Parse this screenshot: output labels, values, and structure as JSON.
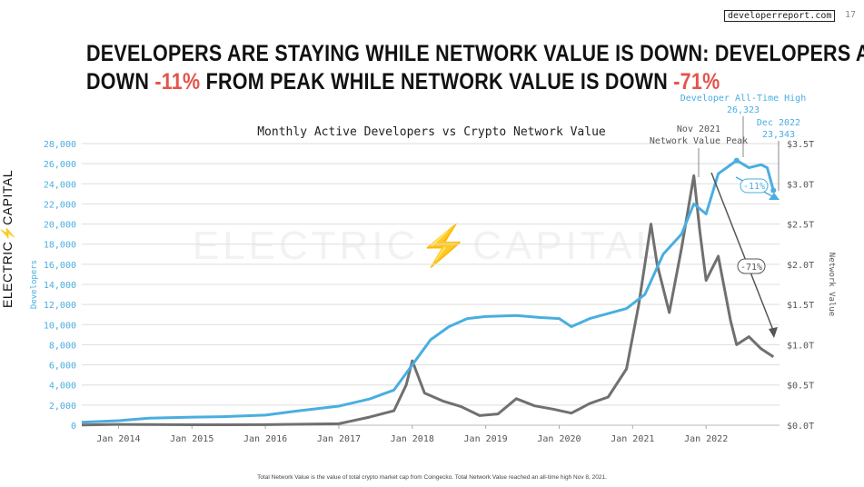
{
  "header": {
    "site": "developerreport.com",
    "page_number": "17",
    "headline_1": "DEVELOPERS ARE STAYING WHILE NETWORK VALUE IS DOWN: DEVELOPERS ARE",
    "headline_2a": "DOWN ",
    "headline_2b": "-11%",
    "headline_2c": " FROM PEAK WHILE NETWORK VALUE IS DOWN ",
    "headline_2d": "-71%"
  },
  "brand": "ELECTRIC⚡CAPITAL",
  "footnote": "Total Network Value is the value of total crypto market cap from Coingecko. Total Network Value reached an all-time high Nov 8, 2021.",
  "colors": {
    "developers": "#4aaee0",
    "network_value": "#707070",
    "accent_red": "#e5534b"
  },
  "chart_data": {
    "type": "line",
    "title": "Monthly Active Developers vs Crypto Network Value",
    "watermark": "ELECTRIC⚡CAPITAL",
    "ylabel": "Developers",
    "y2label": "Network Value",
    "ylim": [
      0,
      28000
    ],
    "y2lim": [
      0,
      3.5
    ],
    "xlim": [
      "2013-07",
      "2022-12"
    ],
    "x_ticks": [
      "Jan 2014",
      "Jan 2015",
      "Jan 2016",
      "Jan 2017",
      "Jan 2018",
      "Jan 2019",
      "Jan 2020",
      "Jan 2021",
      "Jan 2022"
    ],
    "y_ticks": [
      "0",
      "2,000",
      "4,000",
      "6,000",
      "8,000",
      "10,000",
      "12,000",
      "14,000",
      "16,000",
      "18,000",
      "20,000",
      "22,000",
      "24,000",
      "26,000",
      "28,000"
    ],
    "y2_ticks": [
      "$0.0T",
      "$0.5T",
      "$1.0T",
      "$1.5T",
      "$2.0T",
      "$2.5T",
      "$3.0T",
      "$3.5T"
    ],
    "grid": true,
    "series": [
      {
        "name": "Developers",
        "axis": "left",
        "x": [
          "2013-07",
          "2014-01",
          "2014-06",
          "2015-01",
          "2015-06",
          "2016-01",
          "2016-06",
          "2017-01",
          "2017-06",
          "2017-10",
          "2018-01",
          "2018-04",
          "2018-07",
          "2018-10",
          "2019-01",
          "2019-06",
          "2019-10",
          "2020-01",
          "2020-03",
          "2020-06",
          "2020-12",
          "2021-03",
          "2021-06",
          "2021-09",
          "2021-11",
          "2022-01",
          "2022-03",
          "2022-06",
          "2022-08",
          "2022-10",
          "2022-11",
          "2022-12"
        ],
        "values": [
          300,
          450,
          700,
          800,
          850,
          1000,
          1400,
          1900,
          2600,
          3500,
          6000,
          8500,
          9800,
          10600,
          10800,
          10900,
          10700,
          10600,
          9800,
          10600,
          11600,
          13000,
          17000,
          19000,
          22000,
          21000,
          25000,
          26323,
          25600,
          25900,
          25600,
          23343
        ]
      },
      {
        "name": "Network Value",
        "axis": "right",
        "x": [
          "2013-07",
          "2014-01",
          "2015-01",
          "2016-01",
          "2017-01",
          "2017-06",
          "2017-10",
          "2017-12",
          "2018-01",
          "2018-03",
          "2018-06",
          "2018-09",
          "2018-12",
          "2019-03",
          "2019-06",
          "2019-09",
          "2019-12",
          "2020-03",
          "2020-06",
          "2020-09",
          "2020-12",
          "2021-02",
          "2021-04",
          "2021-05",
          "2021-07",
          "2021-09",
          "2021-11",
          "2021-12",
          "2022-01",
          "2022-03",
          "2022-05",
          "2022-06",
          "2022-08",
          "2022-10",
          "2022-12"
        ],
        "values": [
          0.002,
          0.01,
          0.006,
          0.007,
          0.018,
          0.1,
          0.18,
          0.5,
          0.8,
          0.4,
          0.3,
          0.23,
          0.12,
          0.14,
          0.33,
          0.24,
          0.2,
          0.15,
          0.27,
          0.35,
          0.7,
          1.5,
          2.5,
          2.0,
          1.4,
          2.2,
          3.1,
          2.4,
          1.8,
          2.1,
          1.3,
          1.0,
          1.1,
          0.95,
          0.85
        ]
      }
    ],
    "annotations": {
      "dev_ath_label": "Developer All-Time High",
      "dev_ath_value": "26,323",
      "dec2022_label": "Dec 2022",
      "dec2022_value": "23,343",
      "nv_peak_label_1": "Nov 2021",
      "nv_peak_label_2": "Network Value Peak",
      "dev_change": "-11%",
      "nv_change": "-71%"
    }
  }
}
